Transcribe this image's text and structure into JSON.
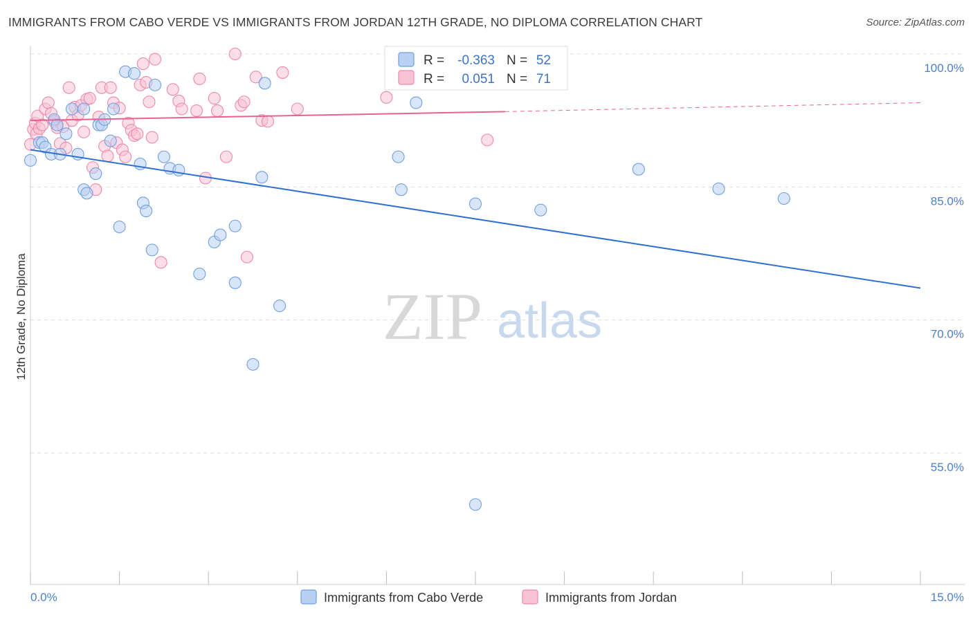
{
  "title": "IMMIGRANTS FROM CABO VERDE VS IMMIGRANTS FROM JORDAN 12TH GRADE, NO DIPLOMA CORRELATION CHART",
  "source": "Source: ZipAtlas.com",
  "watermark": {
    "zip": "ZIP",
    "atlas": "atlas"
  },
  "colors": {
    "cabo_verde": "#6fa0e0",
    "cabo_verde_fill": "#b9d0f2",
    "cabo_verde_line": "#2f6fd0",
    "jordan": "#ee88aa",
    "jordan_fill": "#f7c3d4",
    "jordan_line": "#e8628f",
    "axis_text": "#4a7fd0",
    "grid": "#dddddd"
  },
  "stats": {
    "r_label": "R =",
    "n_label": "N =",
    "rows": [
      {
        "series": "Immigrants from Cabo Verde",
        "r": "-0.363",
        "n": "52"
      },
      {
        "series": "Immigrants from Jordan",
        "r": "0.051",
        "n": "71"
      }
    ]
  },
  "chart_data": {
    "type": "scatter",
    "title": "IMMIGRANTS FROM CABO VERDE VS IMMIGRANTS FROM JORDAN 12TH GRADE, NO DIPLOMA CORRELATION CHART",
    "xlabel": "",
    "ylabel": "12th Grade, No Diploma",
    "xlim": [
      0,
      15
    ],
    "ylim": [
      40,
      101
    ],
    "x_tick_labels": [
      "0.0%",
      "15.0%"
    ],
    "y_ticks": [
      55,
      70,
      85,
      100
    ],
    "y_tick_labels": [
      "55.0%",
      "70.0%",
      "85.0%",
      "100.0%"
    ],
    "grid": true,
    "legend_position": "bottom",
    "series": [
      {
        "name": "Immigrants from Cabo Verde",
        "trend": {
          "x": [
            0.0,
            15.0
          ],
          "y": [
            89.2,
            73.6
          ]
        },
        "points": [
          [
            0.0,
            88.0
          ],
          [
            0.15,
            90.0
          ],
          [
            0.2,
            90.0
          ],
          [
            0.25,
            89.5
          ],
          [
            0.35,
            88.7
          ],
          [
            0.5,
            88.7
          ],
          [
            0.4,
            92.6
          ],
          [
            0.45,
            92.0
          ],
          [
            0.6,
            91.0
          ],
          [
            0.7,
            93.8
          ],
          [
            0.8,
            88.7
          ],
          [
            0.9,
            93.8
          ],
          [
            0.9,
            84.7
          ],
          [
            0.95,
            84.3
          ],
          [
            1.1,
            86.5
          ],
          [
            1.15,
            92.0
          ],
          [
            1.2,
            92.0
          ],
          [
            1.25,
            92.6
          ],
          [
            1.35,
            90.2
          ],
          [
            1.4,
            93.8
          ],
          [
            1.5,
            80.5
          ],
          [
            1.6,
            98.0
          ],
          [
            1.75,
            97.8
          ],
          [
            1.85,
            87.6
          ],
          [
            1.9,
            83.2
          ],
          [
            1.95,
            82.3
          ],
          [
            2.05,
            77.9
          ],
          [
            2.1,
            96.5
          ],
          [
            2.25,
            88.4
          ],
          [
            2.35,
            87.1
          ],
          [
            2.5,
            86.9
          ],
          [
            2.85,
            75.2
          ],
          [
            3.1,
            78.8
          ],
          [
            3.2,
            79.6
          ],
          [
            3.45,
            80.6
          ],
          [
            3.45,
            74.2
          ],
          [
            3.75,
            65.0
          ],
          [
            3.9,
            86.1
          ],
          [
            3.95,
            96.7
          ],
          [
            4.2,
            71.6
          ],
          [
            6.2,
            88.4
          ],
          [
            6.25,
            84.7
          ],
          [
            6.5,
            94.5
          ],
          [
            7.5,
            49.2
          ],
          [
            7.5,
            83.1
          ],
          [
            8.6,
            82.4
          ],
          [
            10.25,
            87.0
          ],
          [
            11.6,
            84.8
          ],
          [
            12.7,
            83.7
          ]
        ]
      },
      {
        "name": "Immigrants from Jordan",
        "trend": {
          "x": [
            0.0,
            8.0
          ],
          "y": [
            92.5,
            93.5
          ]
        },
        "trend_dashed": {
          "x": [
            8.0,
            15.0
          ],
          "y": [
            93.5,
            94.5
          ]
        },
        "points": [
          [
            0.0,
            89.8
          ],
          [
            0.05,
            91.5
          ],
          [
            0.08,
            92.2
          ],
          [
            0.1,
            91.0
          ],
          [
            0.12,
            93.0
          ],
          [
            0.15,
            91.6
          ],
          [
            0.2,
            92.0
          ],
          [
            0.25,
            93.8
          ],
          [
            0.3,
            94.5
          ],
          [
            0.35,
            93.3
          ],
          [
            0.4,
            92.4
          ],
          [
            0.45,
            91.7
          ],
          [
            0.5,
            89.9
          ],
          [
            0.55,
            91.8
          ],
          [
            0.6,
            89.4
          ],
          [
            0.65,
            96.2
          ],
          [
            0.7,
            92.5
          ],
          [
            0.75,
            94.0
          ],
          [
            0.8,
            93.1
          ],
          [
            0.85,
            94.2
          ],
          [
            0.9,
            91.2
          ],
          [
            0.95,
            94.9
          ],
          [
            1.0,
            95.0
          ],
          [
            1.05,
            87.2
          ],
          [
            1.1,
            84.7
          ],
          [
            1.15,
            92.9
          ],
          [
            1.2,
            96.2
          ],
          [
            1.25,
            89.6
          ],
          [
            1.3,
            88.5
          ],
          [
            1.35,
            96.2
          ],
          [
            1.4,
            94.5
          ],
          [
            1.45,
            90.0
          ],
          [
            1.5,
            93.9
          ],
          [
            1.55,
            89.2
          ],
          [
            1.6,
            88.4
          ],
          [
            1.65,
            92.2
          ],
          [
            1.7,
            91.4
          ],
          [
            1.75,
            90.8
          ],
          [
            1.8,
            91.0
          ],
          [
            1.85,
            96.5
          ],
          [
            1.9,
            98.9
          ],
          [
            1.95,
            96.8
          ],
          [
            2.0,
            94.6
          ],
          [
            2.05,
            90.6
          ],
          [
            2.1,
            99.4
          ],
          [
            2.2,
            76.5
          ],
          [
            2.4,
            96.0
          ],
          [
            2.5,
            94.7
          ],
          [
            2.55,
            93.8
          ],
          [
            2.8,
            93.6
          ],
          [
            2.85,
            97.2
          ],
          [
            2.95,
            86.0
          ],
          [
            3.1,
            95.0
          ],
          [
            3.15,
            93.6
          ],
          [
            3.3,
            88.4
          ],
          [
            3.45,
            100.0
          ],
          [
            3.55,
            94.2
          ],
          [
            3.6,
            94.6
          ],
          [
            3.65,
            77.1
          ],
          [
            3.8,
            97.4
          ],
          [
            3.9,
            92.5
          ],
          [
            4.0,
            92.4
          ],
          [
            4.25,
            97.9
          ],
          [
            4.5,
            93.8
          ],
          [
            6.0,
            95.1
          ],
          [
            7.7,
            90.3
          ]
        ]
      }
    ]
  },
  "legend": [
    {
      "label": "Immigrants from Cabo Verde"
    },
    {
      "label": "Immigrants from Jordan"
    }
  ]
}
